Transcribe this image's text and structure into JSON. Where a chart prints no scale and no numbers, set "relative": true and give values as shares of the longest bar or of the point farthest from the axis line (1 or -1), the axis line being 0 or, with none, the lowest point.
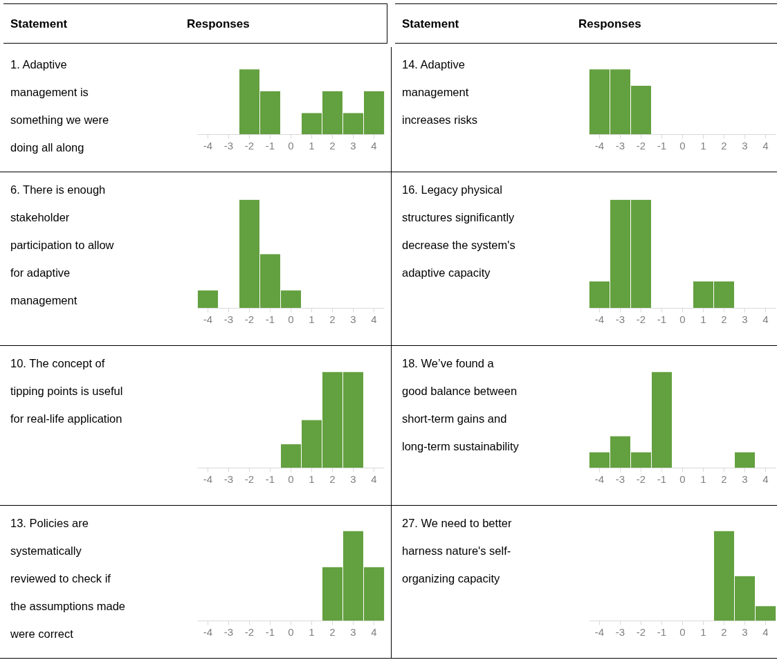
{
  "chart_data": [
    {
      "type": "bar",
      "title": "1. Adaptive management is something we were doing all along",
      "annotations": [
        "Statement",
        "Responses"
      ],
      "relative": true,
      "color": "#63a03f",
      "categories": [
        "-4",
        "-3",
        "-2",
        "-1",
        "0",
        "1",
        "2",
        "3",
        "4"
      ],
      "values": [
        0,
        0,
        1,
        0.667,
        0,
        0.333,
        0.667,
        0.333,
        0.667
      ]
    },
    {
      "type": "bar",
      "title": "14. Adaptive management increases risks",
      "annotations": [
        "Statement",
        "Responses"
      ],
      "relative": true,
      "color": "#63a03f",
      "categories": [
        "-4",
        "-3",
        "-2",
        "-1",
        "0",
        "1",
        "2",
        "3",
        "4"
      ],
      "values": [
        1,
        1,
        0.75,
        0,
        0,
        0,
        0,
        0,
        0
      ]
    },
    {
      "type": "bar",
      "title": "6. There is enough stakeholder participation to allow for adaptive management",
      "relative": true,
      "color": "#63a03f",
      "categories": [
        "-4",
        "-3",
        "-2",
        "-1",
        "0",
        "1",
        "2",
        "3",
        "4"
      ],
      "values": [
        0.167,
        0,
        1,
        0.5,
        0.167,
        0,
        0,
        0,
        0
      ]
    },
    {
      "type": "bar",
      "title": "16. Legacy physical structures significantly decrease the system's adaptive capacity",
      "relative": true,
      "color": "#63a03f",
      "categories": [
        "-4",
        "-3",
        "-2",
        "-1",
        "0",
        "1",
        "2",
        "3",
        "4"
      ],
      "values": [
        0.25,
        1,
        1,
        0,
        0,
        0.25,
        0.25,
        0,
        0
      ]
    },
    {
      "type": "bar",
      "title": "10. The concept of tipping points is useful for real-life application",
      "relative": true,
      "color": "#63a03f",
      "categories": [
        "-4",
        "-3",
        "-2",
        "-1",
        "0",
        "1",
        "2",
        "3",
        "4"
      ],
      "values": [
        0,
        0,
        0,
        0,
        0.25,
        0.5,
        1,
        1,
        0
      ]
    },
    {
      "type": "bar",
      "title": "18. We’ve found a good balance between short-term gains and long-term sustainability",
      "relative": true,
      "color": "#63a03f",
      "categories": [
        "-4",
        "-3",
        "-2",
        "-1",
        "0",
        "1",
        "2",
        "3",
        "4"
      ],
      "values": [
        0.167,
        0.333,
        0.167,
        1,
        0,
        0,
        0,
        0.167,
        0
      ]
    },
    {
      "type": "bar",
      "title": "13. Policies are systematically reviewed to check if the assumptions made were correct",
      "relative": true,
      "color": "#63a03f",
      "categories": [
        "-4",
        "-3",
        "-2",
        "-1",
        "0",
        "1",
        "2",
        "3",
        "4"
      ],
      "values": [
        0,
        0,
        0,
        0,
        0,
        0,
        0.6,
        1,
        0.6
      ]
    },
    {
      "type": "bar",
      "title": "27. We need to better harness nature's self-organizing capacity",
      "relative": true,
      "color": "#63a03f",
      "categories": [
        "-4",
        "-3",
        "-2",
        "-1",
        "0",
        "1",
        "2",
        "3",
        "4"
      ],
      "values": [
        0,
        0,
        0,
        0,
        0,
        0,
        1,
        0.5,
        0.167
      ]
    }
  ]
}
